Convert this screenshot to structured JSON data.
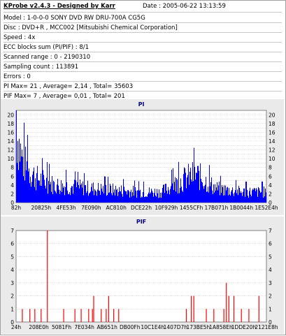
{
  "header": {
    "title": "KProbe v2.4.3 - Designed by Karr",
    "date": "Date : 2005-06-22 13:13:59"
  },
  "info_lines": [
    "Model : 1-0-0-0 SONY    DVD RW DRU-700A  CG5G",
    "Disc : DVD+R , MCC002 [Mitsubishi Chemical Corporation]",
    "Speed : 4x",
    "ECC blocks sum (PI/PIF) : 8/1",
    "Scanned range : 0 - 2190310",
    "Sampling count : 113891",
    "Errors : 0",
    "PI Max= 21 , Average= 2,14 , Total= 35603",
    "PIF Max= 7 , Average= 0,01 , Total= 201"
  ],
  "chart_data": [
    {
      "type": "bar",
      "title": "PI",
      "ylim": [
        0,
        21
      ],
      "y_ticks": [
        "0",
        "2",
        "4",
        "6",
        "8",
        "10",
        "12",
        "14",
        "16",
        "18",
        "20"
      ],
      "x_tick_labels": [
        "82h",
        "20825h",
        "4FE53h",
        "7E090h",
        "AC810h",
        "DCE22h",
        "10F929h",
        "1455CFh",
        "17B071h",
        "1B0044h",
        "1E52E4h"
      ],
      "x_range_hex": [
        "0",
        "216B26"
      ],
      "color": "#0000ff",
      "grid": true,
      "series_profile": [
        {
          "position": 0.0,
          "value": 21
        },
        {
          "position": 0.01,
          "value": 17
        },
        {
          "position": 0.02,
          "value": 13
        },
        {
          "position": 0.04,
          "value": 10
        },
        {
          "position": 0.08,
          "value": 7
        },
        {
          "position": 0.15,
          "value": 5
        },
        {
          "position": 0.3,
          "value": 4
        },
        {
          "position": 0.5,
          "value": 3
        },
        {
          "position": 0.58,
          "value": 3
        },
        {
          "position": 0.63,
          "value": 5
        },
        {
          "position": 0.68,
          "value": 7
        },
        {
          "position": 0.72,
          "value": 8
        },
        {
          "position": 0.76,
          "value": 6
        },
        {
          "position": 0.8,
          "value": 4
        },
        {
          "position": 0.9,
          "value": 3
        },
        {
          "position": 1.0,
          "value": 3
        }
      ]
    },
    {
      "type": "bar",
      "title": "PIF",
      "ylim": [
        0,
        7
      ],
      "y_ticks": [
        "0",
        "1",
        "2",
        "3",
        "4",
        "5",
        "6",
        "7"
      ],
      "x_tick_labels": [
        "24h",
        "208E0h",
        "5081Fh",
        "7E034h",
        "AB651h",
        "DB00Fh",
        "10C1E4h",
        "1407D7h",
        "173BE5h",
        "1A858Eh",
        "1DDE20h",
        "2121E8h"
      ],
      "color": "#ff0000",
      "grid": true,
      "spikes": [
        {
          "x": 0.025,
          "value": 1
        },
        {
          "x": 0.055,
          "value": 1
        },
        {
          "x": 0.075,
          "value": 1
        },
        {
          "x": 0.1,
          "value": 1
        },
        {
          "x": 0.125,
          "value": 7
        },
        {
          "x": 0.19,
          "value": 1
        },
        {
          "x": 0.235,
          "value": 1
        },
        {
          "x": 0.26,
          "value": 1
        },
        {
          "x": 0.29,
          "value": 1
        },
        {
          "x": 0.305,
          "value": 1
        },
        {
          "x": 0.31,
          "value": 2
        },
        {
          "x": 0.34,
          "value": 1
        },
        {
          "x": 0.36,
          "value": 1
        },
        {
          "x": 0.37,
          "value": 2
        },
        {
          "x": 0.39,
          "value": 1
        },
        {
          "x": 0.41,
          "value": 1
        },
        {
          "x": 0.68,
          "value": 1
        },
        {
          "x": 0.7,
          "value": 2
        },
        {
          "x": 0.71,
          "value": 2
        },
        {
          "x": 0.76,
          "value": 1
        },
        {
          "x": 0.79,
          "value": 1
        },
        {
          "x": 0.83,
          "value": 1
        },
        {
          "x": 0.84,
          "value": 3
        },
        {
          "x": 0.85,
          "value": 2
        },
        {
          "x": 0.87,
          "value": 2
        },
        {
          "x": 0.9,
          "value": 1
        },
        {
          "x": 0.93,
          "value": 1
        },
        {
          "x": 0.97,
          "value": 2
        }
      ]
    }
  ]
}
